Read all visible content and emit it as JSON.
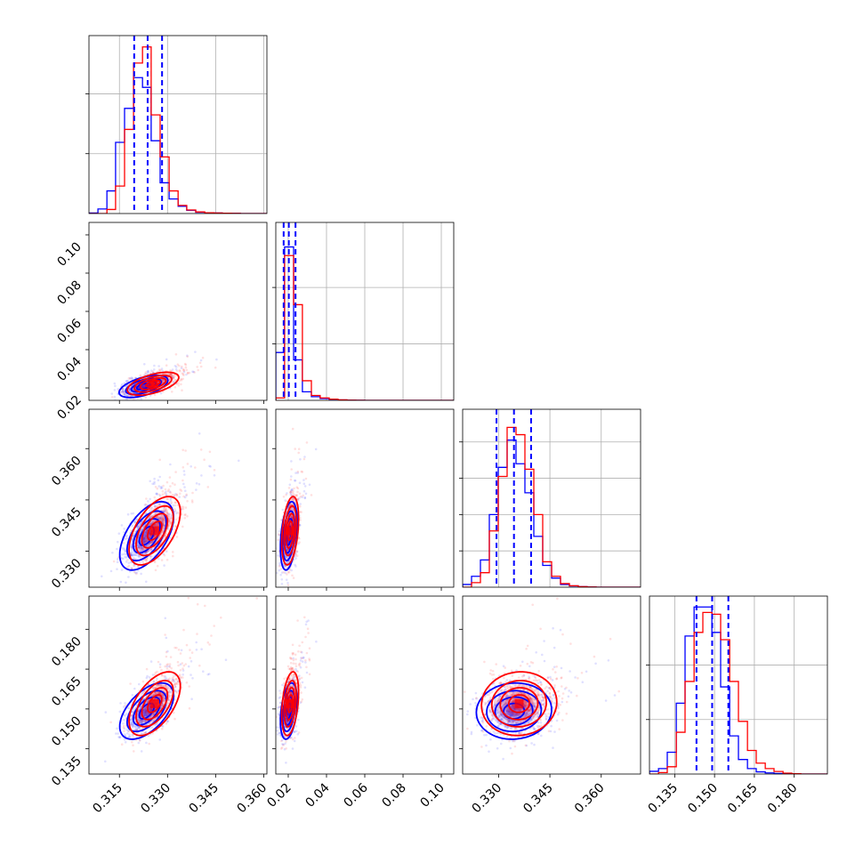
{
  "chart_data": {
    "type": "corner",
    "series": [
      {
        "name": "",
        "color": "#0000ff"
      },
      {
        "name": "",
        "color": "#ff0000"
      }
    ],
    "params": [
      {
        "range": [
          0.3055,
          0.361
        ],
        "ticks": [
          0.315,
          0.33,
          0.345,
          0.36
        ],
        "tick_labels": [
          "0.315",
          "0.330",
          "0.345",
          "0.360"
        ]
      },
      {
        "range": [
          0.0135,
          0.1065
        ],
        "ticks": [
          0.02,
          0.04,
          0.06,
          0.08,
          0.1
        ],
        "tick_labels": [
          "0.02",
          "0.04",
          "0.06",
          "0.08",
          "0.10"
        ]
      },
      {
        "range": [
          0.3195,
          0.3715
        ],
        "ticks": [
          0.33,
          0.345,
          0.36
        ],
        "tick_labels": [
          "0.330",
          "0.345",
          "0.360"
        ]
      },
      {
        "range": [
          0.1255,
          0.1925
        ],
        "ticks": [
          0.135,
          0.15,
          0.165,
          0.18
        ],
        "tick_labels": [
          "0.135",
          "0.150",
          "0.165",
          "0.180"
        ]
      }
    ],
    "histograms": [
      {
        "bin_edges": [
          0.3055,
          0.3083,
          0.3111,
          0.3138,
          0.3166,
          0.3194,
          0.3222,
          0.3249,
          0.3277,
          0.3305,
          0.3333,
          0.336,
          0.3388,
          0.3416,
          0.3444,
          0.3471,
          0.3499,
          0.3527,
          0.3555,
          0.3582,
          0.361
        ],
        "blue": [
          0.3,
          2.8,
          14,
          44,
          65,
          84,
          78,
          45,
          19,
          9,
          4.5,
          2,
          0.8,
          0.5,
          0.3,
          0.2,
          0.1,
          0,
          0,
          0
        ],
        "red": [
          0,
          0,
          2.5,
          17,
          52,
          93,
          103,
          61,
          35,
          14,
          5,
          2.2,
          1,
          0.5,
          0.3,
          0.2,
          0.1,
          0,
          0,
          0
        ],
        "quantiles": [
          0.3196,
          0.3238,
          0.3283
        ],
        "ylim": [
          0,
          110
        ],
        "yticks": [
          37,
          74
        ]
      },
      {
        "bin_edges": [
          0.0135,
          0.0181,
          0.0228,
          0.0274,
          0.0321,
          0.0367,
          0.0414,
          0.046,
          0.0507,
          0.0553,
          0.06,
          0.0646,
          0.0693,
          0.0739,
          0.0786,
          0.0832,
          0.0879,
          0.0925,
          0.0972,
          0.1018,
          0.1065
        ],
        "blue": [
          39,
          125,
          33,
          7,
          3,
          1.5,
          0.8,
          0.3,
          0.2,
          0.1,
          0,
          0,
          0,
          0,
          0,
          0,
          0,
          0,
          0,
          0
        ],
        "red": [
          2,
          118,
          78,
          16,
          4,
          2,
          1,
          0.4,
          0.2,
          0.1,
          0,
          0,
          0,
          0,
          0,
          0,
          0,
          0,
          0,
          0
        ],
        "quantiles": [
          0.0176,
          0.0203,
          0.0238
        ],
        "ylim": [
          0,
          145
        ],
        "yticks": [
          46,
          92
        ]
      },
      {
        "bin_edges": [
          0.3195,
          0.3221,
          0.3247,
          0.3273,
          0.3299,
          0.3325,
          0.3351,
          0.3377,
          0.3403,
          0.3429,
          0.3455,
          0.3481,
          0.3507,
          0.3533,
          0.3559,
          0.3585,
          0.3611,
          0.3637,
          0.3663,
          0.3689,
          0.3715
        ],
        "blue": [
          1.5,
          6,
          15,
          40,
          66,
          81,
          68,
          52,
          28,
          12,
          5,
          1.5,
          0.7,
          0.3,
          0.1,
          0,
          0,
          0,
          0,
          0
        ],
        "red": [
          0,
          2.5,
          8,
          31,
          61,
          88,
          84,
          65,
          40,
          14,
          6,
          2,
          0.8,
          0.3,
          0.1,
          0,
          0,
          0,
          0,
          0
        ],
        "quantiles": [
          0.3294,
          0.3345,
          0.3395
        ],
        "ylim": [
          0,
          98
        ],
        "yticks": [
          20,
          40,
          60,
          80
        ]
      },
      {
        "bin_edges": [
          0.1255,
          0.1289,
          0.1322,
          0.1356,
          0.1389,
          0.1423,
          0.1456,
          0.149,
          0.1523,
          0.1557,
          0.159,
          0.1624,
          0.1657,
          0.1691,
          0.1724,
          0.1758,
          0.1791,
          0.1825,
          0.1858,
          0.1892,
          0.1925
        ],
        "blue": [
          1.5,
          3,
          12,
          39,
          76,
          92,
          92,
          78,
          48,
          21,
          8,
          3,
          1.2,
          0.6,
          0.3,
          0.1,
          0,
          0,
          0,
          0
        ],
        "red": [
          0,
          0.8,
          4,
          23,
          51,
          78,
          89,
          88,
          74,
          51,
          29,
          13,
          6,
          3,
          1.4,
          0.5,
          0.2,
          0,
          0,
          0
        ],
        "quantiles": [
          0.1432,
          0.1491,
          0.1552
        ],
        "ylim": [
          0,
          98
        ],
        "yticks": [
          30,
          60
        ]
      }
    ],
    "pair_panels": [
      {
        "row": 1,
        "col": 0,
        "blue": {
          "center": [
            0.3225,
            0.0208
          ],
          "sigma": [
            0.0038,
            0.0029
          ],
          "rho": 0.55
        },
        "red": {
          "center": [
            0.3255,
            0.0222
          ],
          "sigma": [
            0.004,
            0.003
          ],
          "rho": 0.55
        }
      },
      {
        "row": 2,
        "col": 0,
        "blue": {
          "center": [
            0.3235,
            0.3345
          ],
          "sigma": [
            0.0042,
            0.005
          ],
          "rho": 0.55
        },
        "red": {
          "center": [
            0.326,
            0.336
          ],
          "sigma": [
            0.004,
            0.005
          ],
          "rho": 0.55
        }
      },
      {
        "row": 2,
        "col": 1,
        "blue": {
          "center": [
            0.0203,
            0.3345
          ],
          "sigma": [
            0.0022,
            0.005
          ],
          "rho": 0.35
        },
        "red": {
          "center": [
            0.021,
            0.336
          ],
          "sigma": [
            0.0022,
            0.005
          ],
          "rho": 0.35
        }
      },
      {
        "row": 3,
        "col": 0,
        "blue": {
          "center": [
            0.3235,
            0.1492
          ],
          "sigma": [
            0.0042,
            0.0053
          ],
          "rho": 0.55
        },
        "red": {
          "center": [
            0.326,
            0.152
          ],
          "sigma": [
            0.004,
            0.006
          ],
          "rho": 0.55
        }
      },
      {
        "row": 3,
        "col": 1,
        "blue": {
          "center": [
            0.0203,
            0.1492
          ],
          "sigma": [
            0.0022,
            0.0053
          ],
          "rho": 0.35
        },
        "red": {
          "center": [
            0.021,
            0.152
          ],
          "sigma": [
            0.0022,
            0.006
          ],
          "rho": 0.35
        }
      },
      {
        "row": 3,
        "col": 2,
        "blue": {
          "center": [
            0.3345,
            0.1492
          ],
          "sigma": [
            0.0055,
            0.0053
          ],
          "rho": 0.05
        },
        "red": {
          "center": [
            0.336,
            0.152
          ],
          "sigma": [
            0.0055,
            0.006
          ],
          "rho": 0.05
        }
      }
    ]
  }
}
